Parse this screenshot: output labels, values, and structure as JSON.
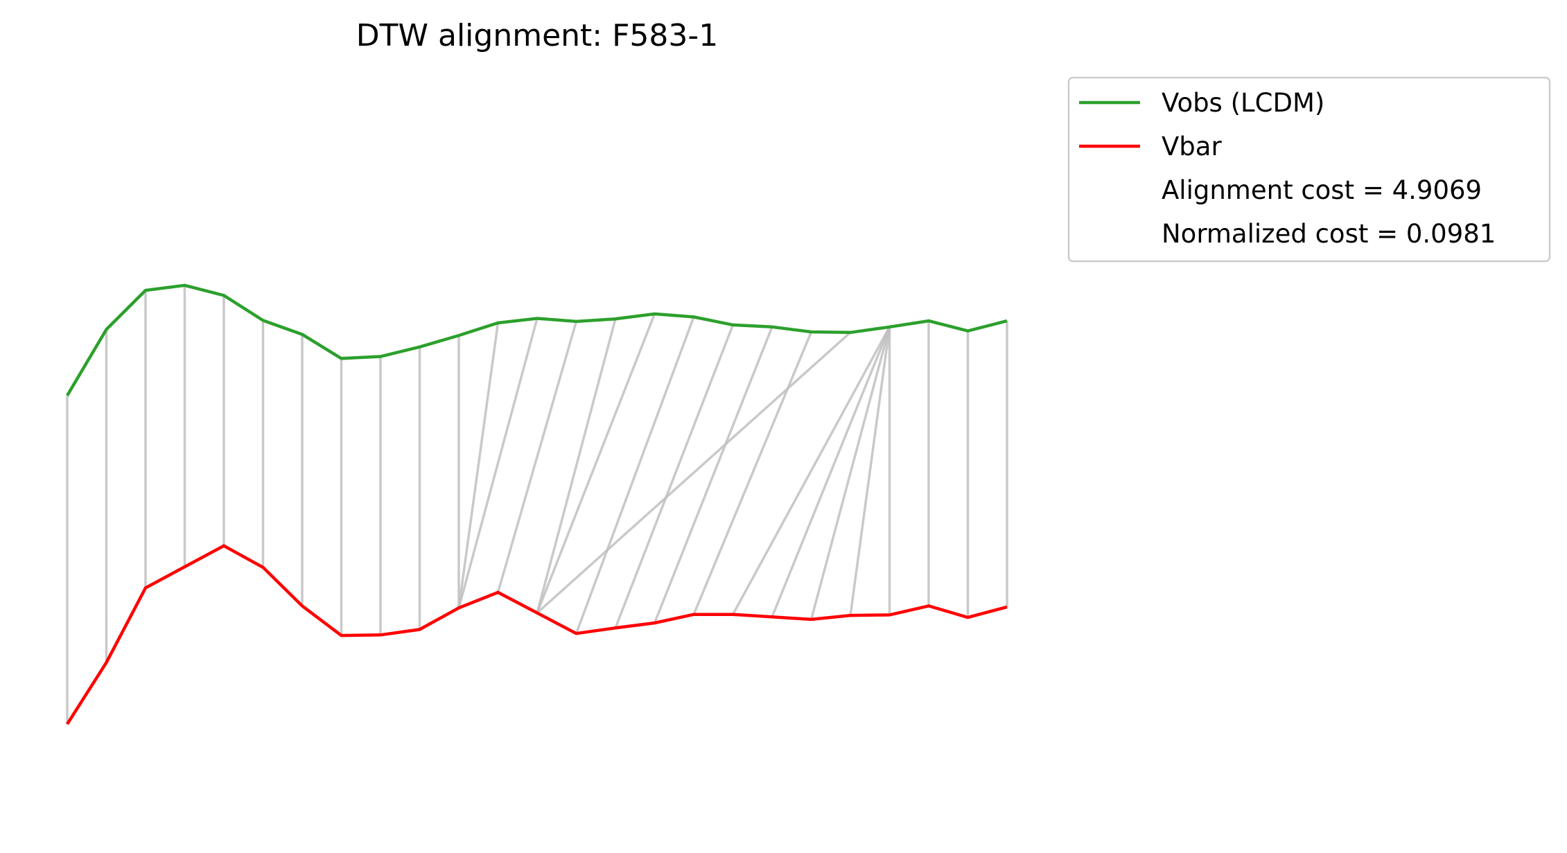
{
  "chart_data": {
    "type": "line",
    "title": "DTW alignment: F583-1",
    "xlabel": "",
    "ylabel": "",
    "axes_visible": false,
    "grid": false,
    "legend_position": "upper-right-outside",
    "colors": {
      "vobs": "#2ca02c",
      "vbar": "#ff0000",
      "alignment": "#c0c0c0"
    },
    "series": [
      {
        "name": "Vobs (LCDM)",
        "color": "#2ca02c",
        "values": [
          6.39,
          7.71,
          8.49,
          8.59,
          8.39,
          7.89,
          7.61,
          7.13,
          7.17,
          7.36,
          7.59,
          7.84,
          7.93,
          7.87,
          7.92,
          8.02,
          7.96,
          7.8,
          7.76,
          7.66,
          7.65,
          7.76,
          7.88,
          7.68,
          7.88
        ]
      },
      {
        "name": "Vbar",
        "color": "#ff0000",
        "values": [
          -0.17,
          1.06,
          2.55,
          2.97,
          3.39,
          2.96,
          2.19,
          1.6,
          1.61,
          1.72,
          2.15,
          2.46,
          2.05,
          1.64,
          1.75,
          1.85,
          2.02,
          2.02,
          1.97,
          1.92,
          2.0,
          2.01,
          2.19,
          1.96,
          2.17
        ]
      }
    ],
    "alignment_pairs": [
      [
        0,
        0
      ],
      [
        1,
        1
      ],
      [
        2,
        2
      ],
      [
        3,
        3
      ],
      [
        4,
        4
      ],
      [
        5,
        5
      ],
      [
        6,
        6
      ],
      [
        7,
        7
      ],
      [
        8,
        8
      ],
      [
        9,
        9
      ],
      [
        10,
        10
      ],
      [
        11,
        10
      ],
      [
        12,
        10
      ],
      [
        13,
        11
      ],
      [
        14,
        12
      ],
      [
        15,
        12
      ],
      [
        16,
        13
      ],
      [
        17,
        14
      ],
      [
        18,
        15
      ],
      [
        19,
        16
      ],
      [
        20,
        12
      ],
      [
        21,
        17
      ],
      [
        21,
        18
      ],
      [
        21,
        19
      ],
      [
        21,
        20
      ],
      [
        21,
        21
      ],
      [
        22,
        22
      ],
      [
        23,
        23
      ],
      [
        24,
        24
      ]
    ],
    "annotations": [
      "Alignment cost = 4.9069",
      "Normalized cost = 0.0981"
    ]
  }
}
